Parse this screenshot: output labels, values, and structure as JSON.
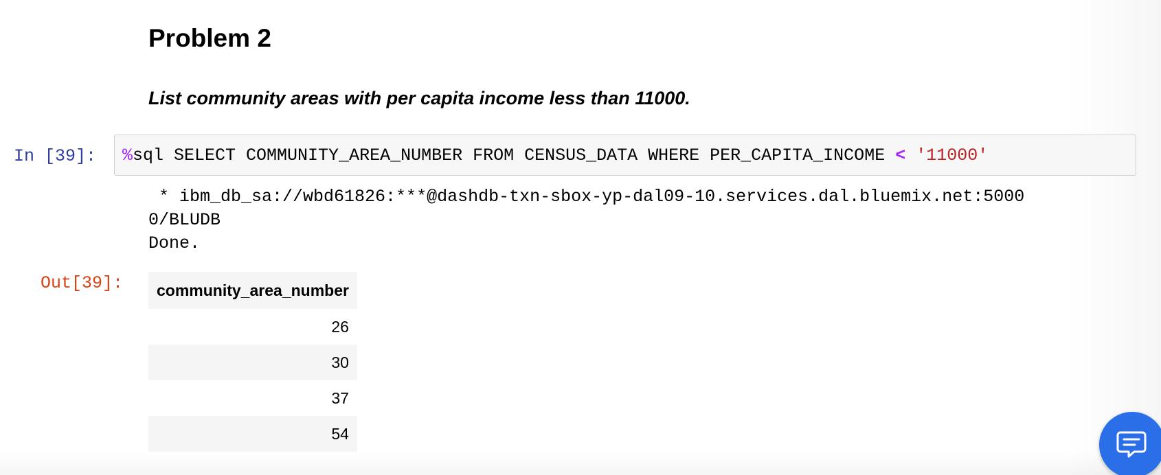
{
  "markdown": {
    "heading": "Problem 2",
    "text": "List community areas with per capita income less than 11000."
  },
  "code_cell": {
    "prompt": "In [39]:",
    "code": {
      "magic": "%",
      "statement": "sql SELECT COMMUNITY_AREA_NUMBER FROM CENSUS_DATA WHERE PER_CAPITA_INCOME ",
      "operator": "<",
      "literal": "'11000'"
    }
  },
  "output": {
    "stdout_lines": [
      " * ibm_db_sa://wbd61826:***@dashdb-txn-sbox-yp-dal09-10.services.dal.bluemix.net:5000",
      "0/BLUDB",
      "Done."
    ],
    "prompt": "Out[39]:",
    "table": {
      "columns": [
        "community_area_number"
      ],
      "rows": [
        "26",
        "30",
        "37",
        "54"
      ]
    }
  },
  "icons": {
    "chat": "chat-bubble-icon"
  },
  "colors": {
    "in_prompt": "#303f9f",
    "out_prompt": "#d84315",
    "chat_button": "#2a6ee8"
  }
}
